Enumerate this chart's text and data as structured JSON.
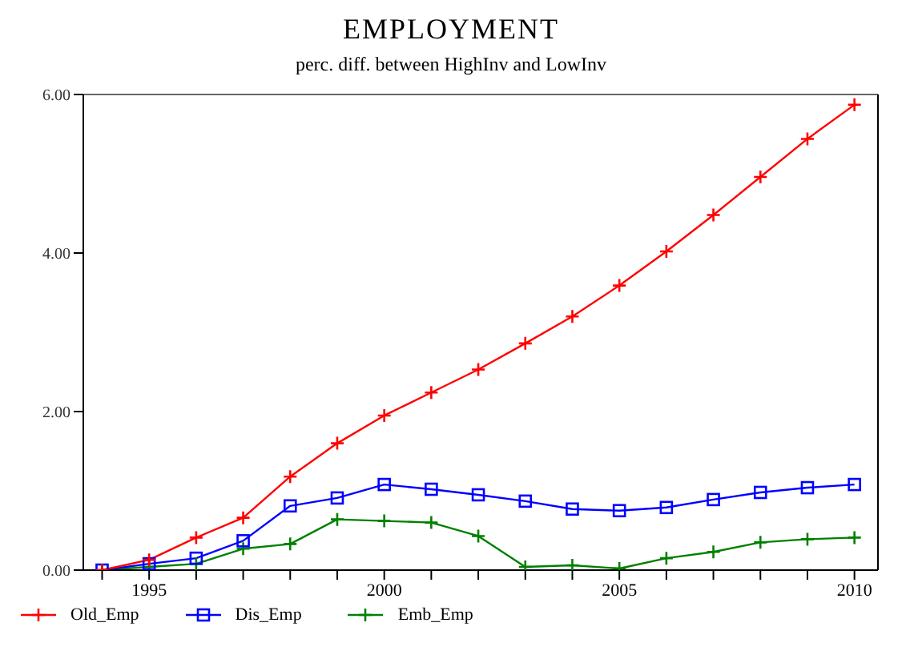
{
  "chart_data": {
    "type": "line",
    "title": "EMPLOYMENT",
    "subtitle": "perc. diff. between HighInv and LowInv",
    "x": [
      1994,
      1995,
      1996,
      1997,
      1998,
      1999,
      2000,
      2001,
      2002,
      2003,
      2004,
      2005,
      2006,
      2007,
      2008,
      2009,
      2010
    ],
    "series": [
      {
        "name": "Old_Emp",
        "color": "#ff0000",
        "marker": "cross",
        "values": [
          0,
          0.13,
          0.41,
          0.66,
          1.18,
          1.6,
          1.95,
          2.24,
          2.53,
          2.86,
          3.2,
          3.59,
          4.02,
          4.48,
          4.96,
          5.44,
          5.87
        ]
      },
      {
        "name": "Dis_Emp",
        "color": "#0000ff",
        "marker": "square",
        "values": [
          0,
          0.08,
          0.15,
          0.37,
          0.81,
          0.91,
          1.08,
          1.02,
          0.95,
          0.87,
          0.77,
          0.75,
          0.79,
          0.89,
          0.98,
          1.04,
          1.08
        ]
      },
      {
        "name": "Emb_Emp",
        "color": "#008000",
        "marker": "cross",
        "values": [
          0,
          0.04,
          0.08,
          0.27,
          0.33,
          0.64,
          0.62,
          0.6,
          0.43,
          0.04,
          0.06,
          0.02,
          0.15,
          0.23,
          0.35,
          0.39,
          0.41
        ]
      }
    ],
    "xlim": [
      1993.6,
      2010.5
    ],
    "xticks": [
      {
        "value": 1994,
        "label": null
      },
      1995,
      {
        "value": 1996,
        "label": null
      },
      {
        "value": 1997,
        "label": null
      },
      {
        "value": 1998,
        "label": null
      },
      {
        "value": 1999,
        "label": null
      },
      2000,
      {
        "value": 2001,
        "label": null
      },
      {
        "value": 2002,
        "label": null
      },
      {
        "value": 2003,
        "label": null
      },
      {
        "value": 2004,
        "label": null
      },
      2005,
      {
        "value": 2006,
        "label": null
      },
      {
        "value": 2007,
        "label": null
      },
      {
        "value": 2008,
        "label": null
      },
      {
        "value": 2009,
        "label": null
      },
      2010
    ],
    "ylim": [
      0,
      6
    ],
    "yticks": [
      {
        "value": 0,
        "label": "0.00"
      },
      {
        "value": 2,
        "label": "2.00"
      },
      {
        "value": 4,
        "label": "4.00"
      },
      {
        "value": 6,
        "label": "6.00"
      }
    ],
    "legend": "bottom left",
    "line_style": "solid"
  }
}
